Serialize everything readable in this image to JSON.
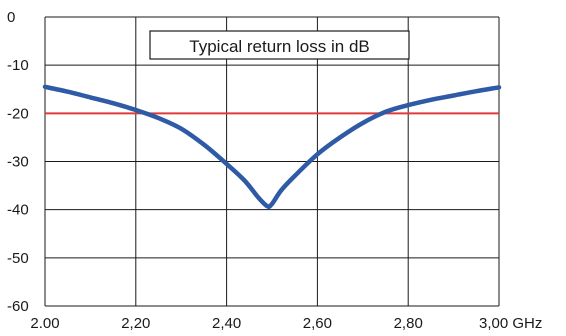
{
  "chart_data": {
    "type": "line",
    "title": "Typical return loss in dB",
    "xlabel": "",
    "ylabel": "",
    "xlim": [
      2.0,
      3.0
    ],
    "ylim": [
      -60,
      0
    ],
    "x_ticks": [
      2.0,
      2.2,
      2.4,
      2.6,
      2.8,
      3.0
    ],
    "x_tick_labels": [
      "2.00",
      "2,20",
      "2,40",
      "2,60",
      "2,80",
      "3,00 GHz"
    ],
    "y_ticks": [
      0,
      -10,
      -20,
      -30,
      -40,
      -50,
      -60
    ],
    "y_tick_labels": [
      "0",
      "-10",
      "-20",
      "-30",
      "-40",
      "-50",
      "-60"
    ],
    "grid": true,
    "series": [
      {
        "color": "#2e5aa6",
        "x": [
          2.0,
          2.05,
          2.1,
          2.15,
          2.2,
          2.25,
          2.3,
          2.35,
          2.4,
          2.44,
          2.47,
          2.49,
          2.5,
          2.52,
          2.55,
          2.6,
          2.65,
          2.7,
          2.75,
          2.8,
          2.85,
          2.9,
          2.95,
          3.0
        ],
        "y": [
          -14.5,
          -15.5,
          -16.7,
          -17.9,
          -19.3,
          -21.0,
          -23.2,
          -26.5,
          -30.5,
          -34.0,
          -37.5,
          -39.3,
          -38.8,
          -36.0,
          -33.0,
          -28.5,
          -25.0,
          -22.0,
          -19.7,
          -18.3,
          -17.2,
          -16.3,
          -15.4,
          -14.6
        ]
      }
    ],
    "reference_line": {
      "y": -20,
      "color": "#e03a3a"
    }
  }
}
